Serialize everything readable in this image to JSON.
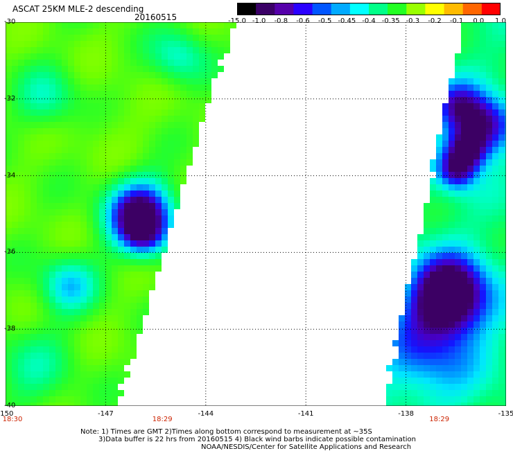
{
  "header": {
    "title": "ASCAT 25KM MLE-2 descending",
    "date": "20160515"
  },
  "colorbar": {
    "labels": [
      "-15.0",
      "-1.0",
      "-0.8",
      "-0.6",
      "-0.5",
      "-0.45",
      "-0.4",
      "-0.35",
      "-0.3",
      "-0.2",
      "-0.1",
      "0.0",
      "1.0"
    ],
    "colors": [
      "#000000",
      "#3a0066",
      "#5500aa",
      "#2a00ff",
      "#0055ff",
      "#00aaff",
      "#00ffff",
      "#00ff88",
      "#22ff22",
      "#99ff00",
      "#ffff00",
      "#ffbb00",
      "#ff6600",
      "#ff0000"
    ]
  },
  "map": {
    "lat_labels": [
      "-30",
      "-32",
      "-34",
      "-36",
      "-38",
      "-40"
    ],
    "lon_labels": [
      "-150",
      "-147",
      "-144",
      "-141",
      "-138",
      "-135"
    ],
    "time_labels": [
      "18:30",
      "18:29",
      "18:29"
    ],
    "lat_range": [
      -40,
      -30
    ],
    "lon_range": [
      -150,
      -135
    ],
    "gridlines": true
  },
  "notes": {
    "line1": "Note: 1) Times are GMT 2)Times along bottom correspond to measurement at ~35S",
    "line2": "3)Data buffer is 22 hrs from 20160515 4) Black wind barbs indicate possible contamination",
    "line3": "NOAA/NESDIS/Center for Satellite Applications and Research"
  }
}
